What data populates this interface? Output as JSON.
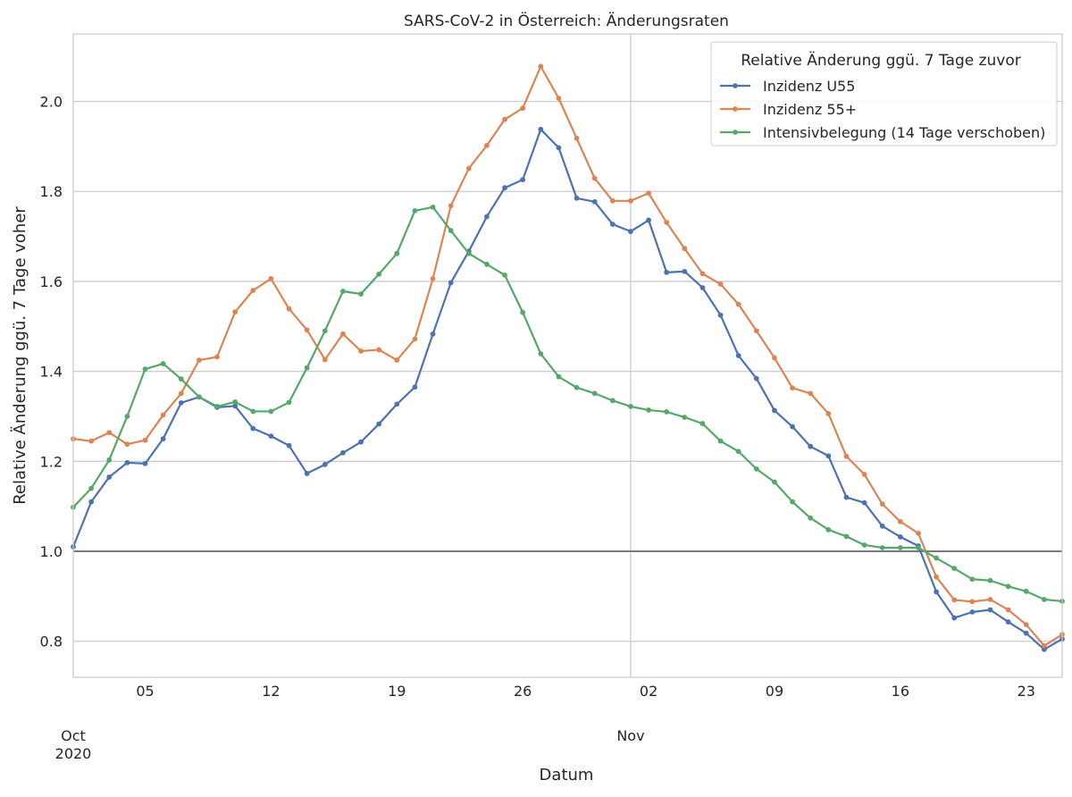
{
  "chart_data": {
    "type": "line",
    "title": "SARS-CoV-2 in Österreich: Änderungsraten",
    "xlabel": "Datum",
    "ylabel": "Relative Änderung ggü. 7 Tage voher",
    "x_start": "2020-10-01",
    "x_end": "2020-11-25",
    "ylim": [
      0.72,
      2.15
    ],
    "yticks": [
      0.8,
      1.0,
      1.2,
      1.4,
      1.6,
      1.8,
      2.0
    ],
    "xticks": [
      {
        "date": "2020-10-01",
        "label": "Oct",
        "sub": "2020"
      },
      {
        "date": "2020-10-05",
        "label": "05"
      },
      {
        "date": "2020-10-12",
        "label": "12"
      },
      {
        "date": "2020-10-19",
        "label": "19"
      },
      {
        "date": "2020-10-26",
        "label": "26"
      },
      {
        "date": "2020-11-01",
        "label": "Nov"
      },
      {
        "date": "2020-11-02",
        "label": "02"
      },
      {
        "date": "2020-11-09",
        "label": "09"
      },
      {
        "date": "2020-11-16",
        "label": "16"
      },
      {
        "date": "2020-11-23",
        "label": "23"
      }
    ],
    "reference_line": 1.0,
    "grid": true,
    "legend": {
      "title": "Relative Änderung ggü. 7 Tage zuvor",
      "position": "top-right"
    },
    "series": [
      {
        "name": "Inzidenz U55",
        "color": "#4c72b0",
        "values": [
          1.01,
          1.11,
          1.165,
          1.197,
          1.195,
          1.25,
          1.33,
          1.343,
          1.32,
          1.323,
          1.273,
          1.256,
          1.235,
          1.173,
          1.193,
          1.219,
          1.243,
          1.283,
          1.327,
          1.365,
          1.483,
          1.597,
          1.667,
          1.744,
          1.808,
          1.826,
          1.938,
          1.897,
          1.785,
          1.777,
          1.727,
          1.711,
          1.736,
          1.62,
          1.622,
          1.586,
          1.525,
          1.435,
          1.384,
          1.313,
          1.277,
          1.233,
          1.212,
          1.12,
          1.108,
          1.056,
          1.032,
          1.012,
          0.91,
          0.852,
          0.865,
          0.87,
          0.843,
          0.818,
          0.782,
          0.805
        ]
      },
      {
        "name": "Inzidenz 55+",
        "color": "#dd8452",
        "values": [
          1.25,
          1.245,
          1.264,
          1.238,
          1.247,
          1.303,
          1.351,
          1.425,
          1.432,
          1.532,
          1.58,
          1.606,
          1.539,
          1.492,
          1.426,
          1.483,
          1.445,
          1.448,
          1.425,
          1.472,
          1.606,
          1.768,
          1.851,
          1.902,
          1.96,
          1.985,
          2.078,
          2.007,
          1.918,
          1.829,
          1.779,
          1.779,
          1.796,
          1.731,
          1.673,
          1.617,
          1.594,
          1.549,
          1.49,
          1.43,
          1.363,
          1.351,
          1.306,
          1.211,
          1.171,
          1.105,
          1.066,
          1.04,
          0.943,
          0.892,
          0.888,
          0.893,
          0.87,
          0.837,
          0.79,
          0.815
        ]
      },
      {
        "name": "Intensivbelegung (14 Tage verschoben)",
        "color": "#55a868",
        "values": [
          1.098,
          1.14,
          1.203,
          1.3,
          1.405,
          1.417,
          1.383,
          1.343,
          1.322,
          1.332,
          1.311,
          1.311,
          1.331,
          1.408,
          1.49,
          1.578,
          1.572,
          1.616,
          1.662,
          1.757,
          1.765,
          1.713,
          1.662,
          1.638,
          1.614,
          1.531,
          1.439,
          1.388,
          1.364,
          1.351,
          1.335,
          1.322,
          1.314,
          1.31,
          1.298,
          1.284,
          1.245,
          1.222,
          1.183,
          1.154,
          1.11,
          1.074,
          1.048,
          1.033,
          1.014,
          1.008,
          1.008,
          1.008,
          0.985,
          0.962,
          0.938,
          0.935,
          0.922,
          0.911,
          0.893,
          0.889
        ]
      }
    ]
  }
}
